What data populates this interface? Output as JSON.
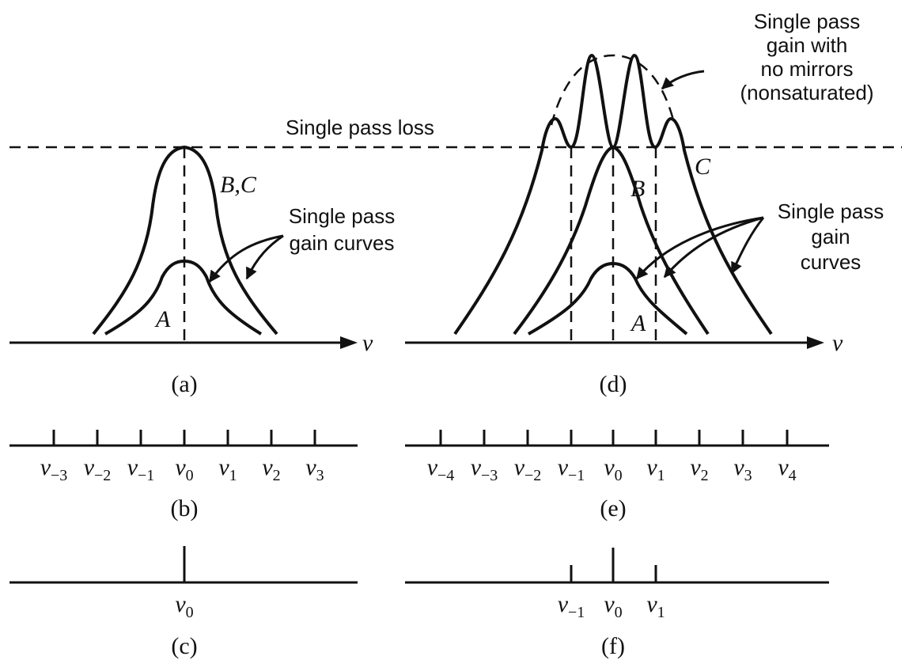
{
  "panels": {
    "a": {
      "caption": "(a)",
      "axis_label": "ν",
      "loss_label": "Single pass loss",
      "curve_labels": [
        "B,C",
        "A"
      ],
      "gain_label": [
        "Single pass",
        "gain curves"
      ]
    },
    "b": {
      "caption": "(b)",
      "modes": [
        {
          "symbol": "ν",
          "sub": "−3"
        },
        {
          "symbol": "ν",
          "sub": "−2"
        },
        {
          "symbol": "ν",
          "sub": "−1"
        },
        {
          "symbol": "ν",
          "sub": "0"
        },
        {
          "symbol": "ν",
          "sub": "1"
        },
        {
          "symbol": "ν",
          "sub": "2"
        },
        {
          "symbol": "ν",
          "sub": "3"
        }
      ]
    },
    "c": {
      "caption": "(c)",
      "modes": [
        {
          "symbol": "ν",
          "sub": "0"
        }
      ]
    },
    "d": {
      "caption": "(d)",
      "axis_label": "ν",
      "nomirror_label": [
        "Single pass",
        "gain with",
        "no mirrors",
        "(nonsaturated)"
      ],
      "curve_labels": [
        "B",
        "C",
        "A"
      ],
      "gain_label": [
        "Single pass",
        "gain",
        "curves"
      ]
    },
    "e": {
      "caption": "(e)",
      "modes": [
        {
          "symbol": "ν",
          "sub": "−4"
        },
        {
          "symbol": "ν",
          "sub": "−3"
        },
        {
          "symbol": "ν",
          "sub": "−2"
        },
        {
          "symbol": "ν",
          "sub": "−1"
        },
        {
          "symbol": "ν",
          "sub": "0"
        },
        {
          "symbol": "ν",
          "sub": "1"
        },
        {
          "symbol": "ν",
          "sub": "2"
        },
        {
          "symbol": "ν",
          "sub": "3"
        },
        {
          "symbol": "ν",
          "sub": "4"
        }
      ]
    },
    "f": {
      "caption": "(f)",
      "modes": [
        {
          "symbol": "ν",
          "sub": "−1"
        },
        {
          "symbol": "ν",
          "sub": "0"
        },
        {
          "symbol": "ν",
          "sub": "1"
        }
      ]
    }
  }
}
